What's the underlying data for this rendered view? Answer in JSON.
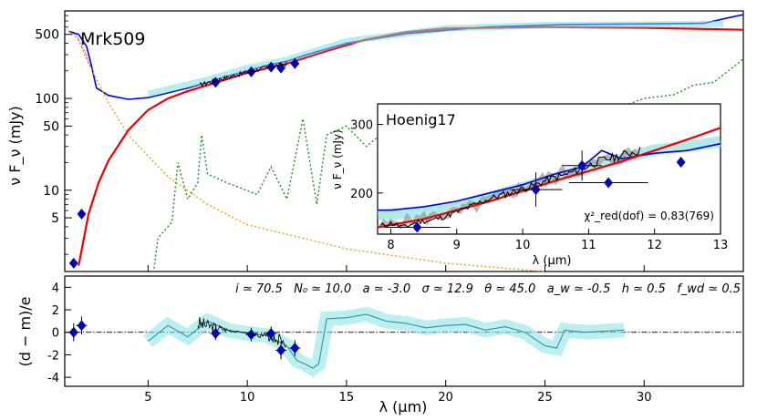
{
  "chart_data": [
    {
      "panel": "main-sed",
      "type": "line",
      "title": "Mrk509",
      "ylabel": "ν F_ν (mJy)",
      "yscale": "log",
      "xlim": [
        0.8,
        35.0
      ],
      "ylim": [
        1.3,
        900
      ],
      "y_ticks": [
        5,
        10,
        50,
        100,
        500
      ],
      "series": [
        {
          "name": "total model (blue)",
          "color": "#0000dd",
          "x": [
            1.0,
            1.5,
            1.9,
            2.1,
            2.4,
            3.0,
            4.0,
            5.0,
            6.0,
            7.0,
            8.0,
            9.0,
            10.0,
            11.0,
            12.0,
            13.0,
            15.0,
            18.0,
            22.0,
            26.0,
            30.0,
            33.0,
            34.5,
            35.0
          ],
          "y": [
            540,
            500,
            370,
            250,
            130,
            108,
            98,
            102,
            115,
            130,
            150,
            175,
            200,
            230,
            255,
            300,
            400,
            510,
            600,
            640,
            650,
            660,
            780,
            820
          ]
        },
        {
          "name": "clumpy torus (red)",
          "color": "#ee0000",
          "x": [
            1.5,
            2.0,
            2.5,
            3.0,
            4.0,
            5.0,
            6.0,
            7.0,
            8.0,
            10.0,
            12.0,
            14.0,
            16.0,
            18.0,
            20.0,
            25.0,
            30.0,
            35.0
          ],
          "y": [
            1.5,
            5.5,
            12,
            21,
            45,
            75,
            100,
            120,
            140,
            190,
            240,
            330,
            440,
            530,
            580,
            600,
            590,
            560
          ]
        },
        {
          "name": "model envelope (cyan)",
          "color": "#7fdcdc",
          "x": [
            5.0,
            8.0,
            10.0,
            12.0,
            15.0,
            20.0,
            25.0,
            30.0,
            34.0
          ],
          "y": [
            112,
            160,
            215,
            265,
            420,
            580,
            630,
            640,
            650
          ]
        },
        {
          "name": "stellar (orange dotted)",
          "color": "#e8a020",
          "x": [
            1.0,
            1.5,
            2.0,
            3.0,
            4.0,
            6.0,
            8.0,
            10.0,
            15.0,
            20.0,
            25.0
          ],
          "y": [
            550,
            430,
            240,
            90,
            40,
            14,
            7,
            4.2,
            2.3,
            1.6,
            1.3
          ]
        },
        {
          "name": "gas emission (green dotted)",
          "color": "#228b22",
          "x": [
            5.3,
            5.5,
            6.2,
            6.5,
            7.0,
            7.5,
            7.7,
            8.0,
            9.0,
            10.5,
            11.2,
            12.0,
            12.8,
            13.5,
            14.0,
            15.0,
            16.0,
            17.0,
            18.0,
            19.0,
            20.0,
            22.0,
            24.0,
            26.0,
            28.0,
            30.0,
            31.5,
            32.5,
            33.5,
            34.5,
            35.0
          ],
          "y": [
            1.4,
            3,
            4.5,
            20,
            8,
            12,
            40,
            15,
            12,
            9,
            18,
            8,
            60,
            7,
            40,
            50,
            30,
            45,
            80,
            65,
            25,
            30,
            55,
            50,
            70,
            100,
            110,
            140,
            150,
            220,
            270
          ]
        },
        {
          "name": "photometry (blue diamonds)",
          "color": "#0000cc",
          "x": [
            1.25,
            1.65,
            8.4,
            10.2,
            11.2,
            11.7,
            12.4
          ],
          "y": [
            1.6,
            5.5,
            150,
            195,
            220,
            215,
            240
          ]
        }
      ]
    },
    {
      "panel": "inset-zoom",
      "type": "line",
      "title": "Hoenig17",
      "xlabel": "λ (μm)",
      "ylabel": "ν F_ν (mJy)",
      "xlim": [
        7.8,
        13.0
      ],
      "ylim": [
        140,
        330
      ],
      "x_ticks": [
        8,
        9,
        10,
        11,
        12,
        13
      ],
      "y_ticks": [
        200,
        300
      ],
      "fit_annotation": "χ²_red(dof) = 0.83(769)",
      "series": [
        {
          "name": "total model (blue)",
          "color": "#0000dd",
          "x": [
            7.8,
            8.0,
            8.5,
            9.0,
            9.5,
            10.0,
            10.5,
            10.9,
            11.2,
            11.5,
            12.0,
            12.5,
            13.0
          ],
          "y": [
            175,
            175,
            180,
            188,
            200,
            212,
            228,
            238,
            262,
            250,
            258,
            262,
            272
          ]
        },
        {
          "name": "clumpy torus (red)",
          "color": "#ee0000",
          "x": [
            7.8,
            8.5,
            9.0,
            9.5,
            10.0,
            10.5,
            11.0,
            11.5,
            12.0,
            12.5,
            13.0
          ],
          "y": [
            150,
            162,
            175,
            188,
            203,
            218,
            232,
            246,
            262,
            278,
            295
          ]
        },
        {
          "name": "observed spectrum (black)",
          "color": "#000000",
          "x": [
            7.85,
            8.0,
            8.2,
            8.4,
            8.6,
            8.8,
            9.0,
            9.2,
            9.4,
            9.6,
            9.8,
            10.0,
            10.2,
            10.4,
            10.6,
            10.8,
            11.0,
            11.2,
            11.4,
            11.6,
            11.8
          ],
          "y": [
            152,
            156,
            150,
            158,
            160,
            165,
            172,
            180,
            188,
            195,
            200,
            206,
            212,
            220,
            225,
            232,
            240,
            248,
            252,
            258,
            262
          ]
        },
        {
          "name": "photometry (blue diamonds)",
          "color": "#0000cc",
          "x": [
            8.4,
            10.2,
            10.9,
            11.3,
            12.4
          ],
          "y": [
            150,
            205,
            240,
            215,
            245
          ]
        }
      ]
    },
    {
      "panel": "residuals",
      "type": "line",
      "xlabel": "λ (μm)",
      "ylabel": "(d − m)/e",
      "xlim": [
        0.8,
        35.0
      ],
      "ylim": [
        -4.8,
        5.0
      ],
      "x_ticks": [
        5,
        10,
        15,
        20,
        25,
        30
      ],
      "y_ticks": [
        -4,
        -2,
        0,
        2,
        4
      ],
      "parameters": "i ≃ 70.5   N₀ ≃ 10.0   a ≃ -3.0   σ ≃ 12.9   θ ≃ 45.0   a_w ≃ -0.5   h ≃ 0.5   f_wd ≃ 0.5",
      "series": [
        {
          "name": "residual model (cyan)",
          "color": "#3a8ea5",
          "x": [
            5.0,
            6.0,
            7.0,
            8.0,
            9.0,
            10.0,
            11.0,
            12.0,
            12.5,
            13.0,
            13.3,
            13.6,
            14.0,
            15.0,
            16.0,
            17.0,
            18.0,
            19.0,
            20.0,
            21.0,
            22.0,
            23.0,
            24.0,
            25.0,
            25.6,
            26.0,
            27.0,
            28.0,
            29.0
          ],
          "y": [
            -0.8,
            0.6,
            -0.4,
            1.0,
            0.2,
            -0.1,
            -0.3,
            -1.2,
            -2.5,
            -2.9,
            -3.2,
            -2.8,
            1.2,
            1.3,
            1.6,
            1.0,
            0.8,
            0.4,
            0.6,
            0.7,
            0.2,
            0.5,
            0.0,
            -1.2,
            -1.4,
            0.2,
            0.0,
            0.1,
            0.2
          ]
        },
        {
          "name": "photometry residual (blue diamonds)",
          "color": "#0000cc",
          "x": [
            1.25,
            1.65,
            8.4,
            10.2,
            11.2,
            11.7,
            12.4
          ],
          "y": [
            0.0,
            0.6,
            -0.1,
            -0.2,
            -0.1,
            -1.6,
            -1.4
          ]
        }
      ]
    }
  ]
}
